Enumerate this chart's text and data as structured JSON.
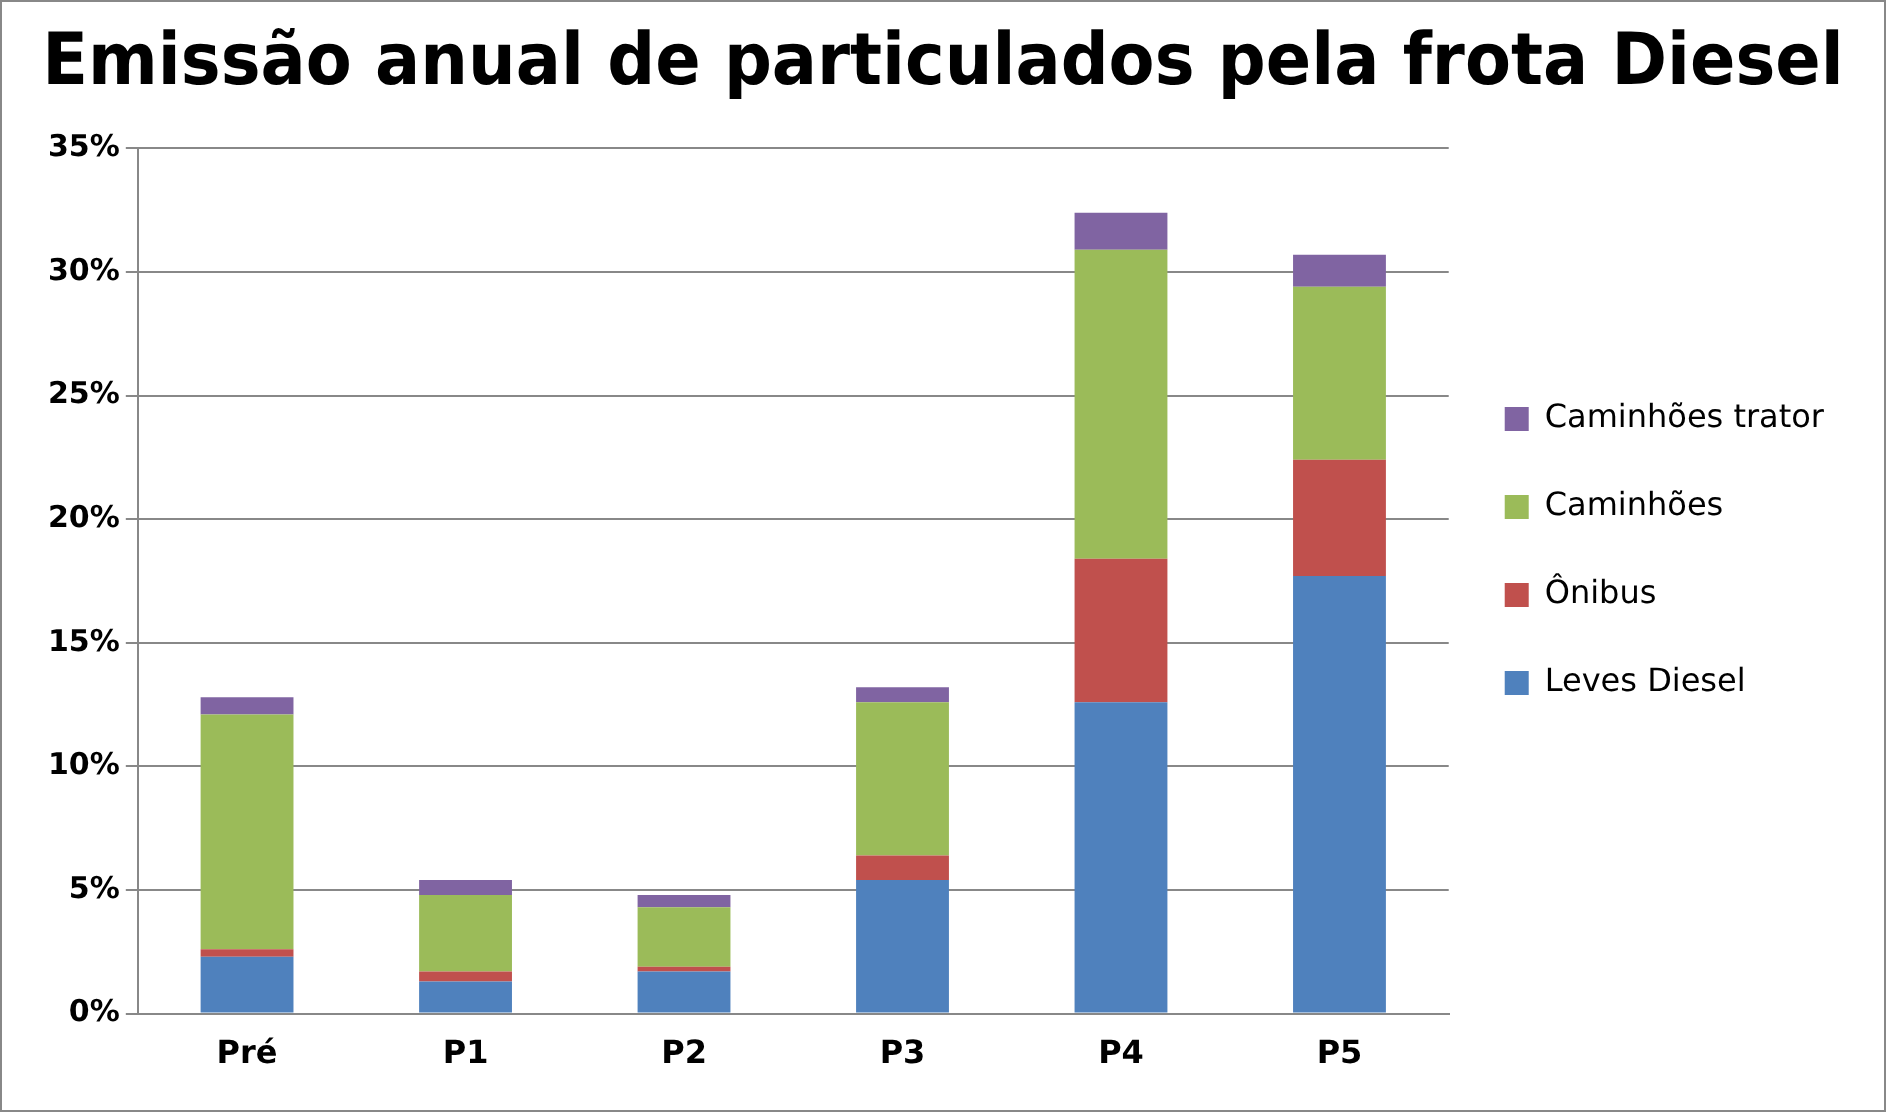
{
  "chart_data": {
    "type": "bar",
    "title": "Emissão anual de particulados pela frota Diesel",
    "categories": [
      "Pré",
      "P1",
      "P2",
      "P3",
      "P4",
      "P5"
    ],
    "stacked": true,
    "ylim": [
      0,
      35
    ],
    "yticks": [
      {
        "value": 0,
        "label": "0%"
      },
      {
        "value": 5,
        "label": "5%"
      },
      {
        "value": 10,
        "label": "10%"
      },
      {
        "value": 15,
        "label": "15%"
      },
      {
        "value": 20,
        "label": "20%"
      },
      {
        "value": 25,
        "label": "25%"
      },
      {
        "value": 30,
        "label": "30%"
      },
      {
        "value": 35,
        "label": "35%"
      }
    ],
    "grid": "y",
    "legend": "right",
    "series": [
      {
        "name": "Leves Diesel",
        "color": "#4f81bd",
        "values": [
          2.3,
          1.3,
          1.7,
          5.4,
          12.6,
          17.7
        ]
      },
      {
        "name": "Ônibus",
        "color": "#c0504d",
        "values": [
          0.3,
          0.4,
          0.2,
          1.0,
          5.8,
          4.7
        ]
      },
      {
        "name": "Caminhões",
        "color": "#9bbb59",
        "values": [
          9.5,
          3.1,
          2.4,
          6.2,
          12.5,
          7.0
        ]
      },
      {
        "name": "Caminhões trator",
        "color": "#8064a2",
        "values": [
          0.7,
          0.6,
          0.5,
          0.6,
          1.5,
          1.3
        ]
      }
    ]
  }
}
